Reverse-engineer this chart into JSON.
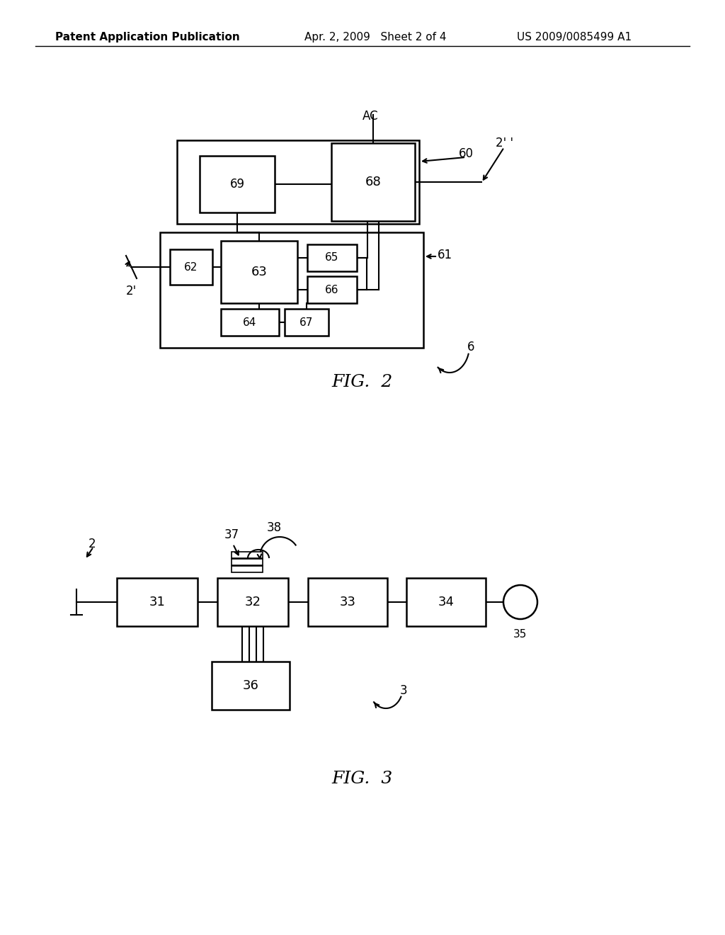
{
  "header_left": "Patent Application Publication",
  "header_mid": "Apr. 2, 2009   Sheet 2 of 4",
  "header_right": "US 2009/0085499 A1",
  "background": "#ffffff",
  "fig2_title": "FIG.  2",
  "fig3_title": "FIG.  3"
}
